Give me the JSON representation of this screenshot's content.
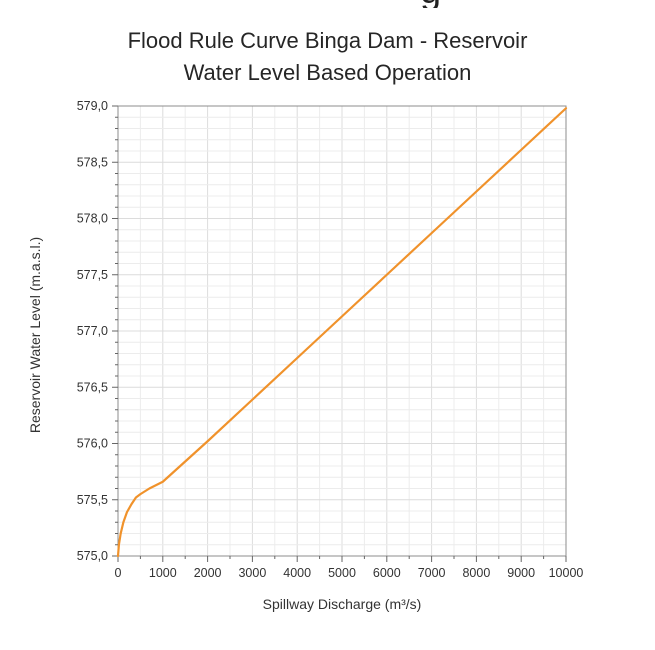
{
  "header_fragment": "g",
  "chart_data": {
    "type": "line",
    "title_line1": "Flood Rule Curve Binga Dam - Reservoir",
    "title_line2": "Water Level Based Operation",
    "xlabel": "Spillway Discharge (m³/s)",
    "ylabel": "Reservoir Water Level (m.a.s.l.)",
    "xlim": [
      0,
      10000
    ],
    "ylim": [
      575.0,
      579.0
    ],
    "x_ticks": [
      0,
      1000,
      2000,
      3000,
      4000,
      5000,
      6000,
      7000,
      8000,
      9000,
      10000
    ],
    "x_tick_labels": [
      "0",
      "1000",
      "2000",
      "3000",
      "4000",
      "5000",
      "6000",
      "7000",
      "8000",
      "9000",
      "10000"
    ],
    "y_ticks": [
      575.0,
      575.5,
      576.0,
      576.5,
      577.0,
      577.5,
      578.0,
      578.5,
      579.0
    ],
    "y_tick_labels": [
      "575,0",
      "575,5",
      "576,0",
      "576,5",
      "577,0",
      "577,5",
      "578,0",
      "578,5",
      "579,0"
    ],
    "grid": true,
    "series": [
      {
        "name": "Flood Rule Curve",
        "color": "#F0922B",
        "x": [
          0,
          20,
          60,
          120,
          200,
          300,
          400,
          500,
          700,
          1000,
          2000,
          3000,
          4000,
          5000,
          6000,
          7000,
          8000,
          9000,
          10000
        ],
        "y": [
          575.0,
          575.1,
          575.2,
          575.3,
          575.39,
          575.46,
          575.52,
          575.55,
          575.6,
          575.66,
          576.02,
          576.39,
          576.76,
          577.13,
          577.5,
          577.87,
          578.24,
          578.61,
          578.98
        ]
      }
    ]
  }
}
